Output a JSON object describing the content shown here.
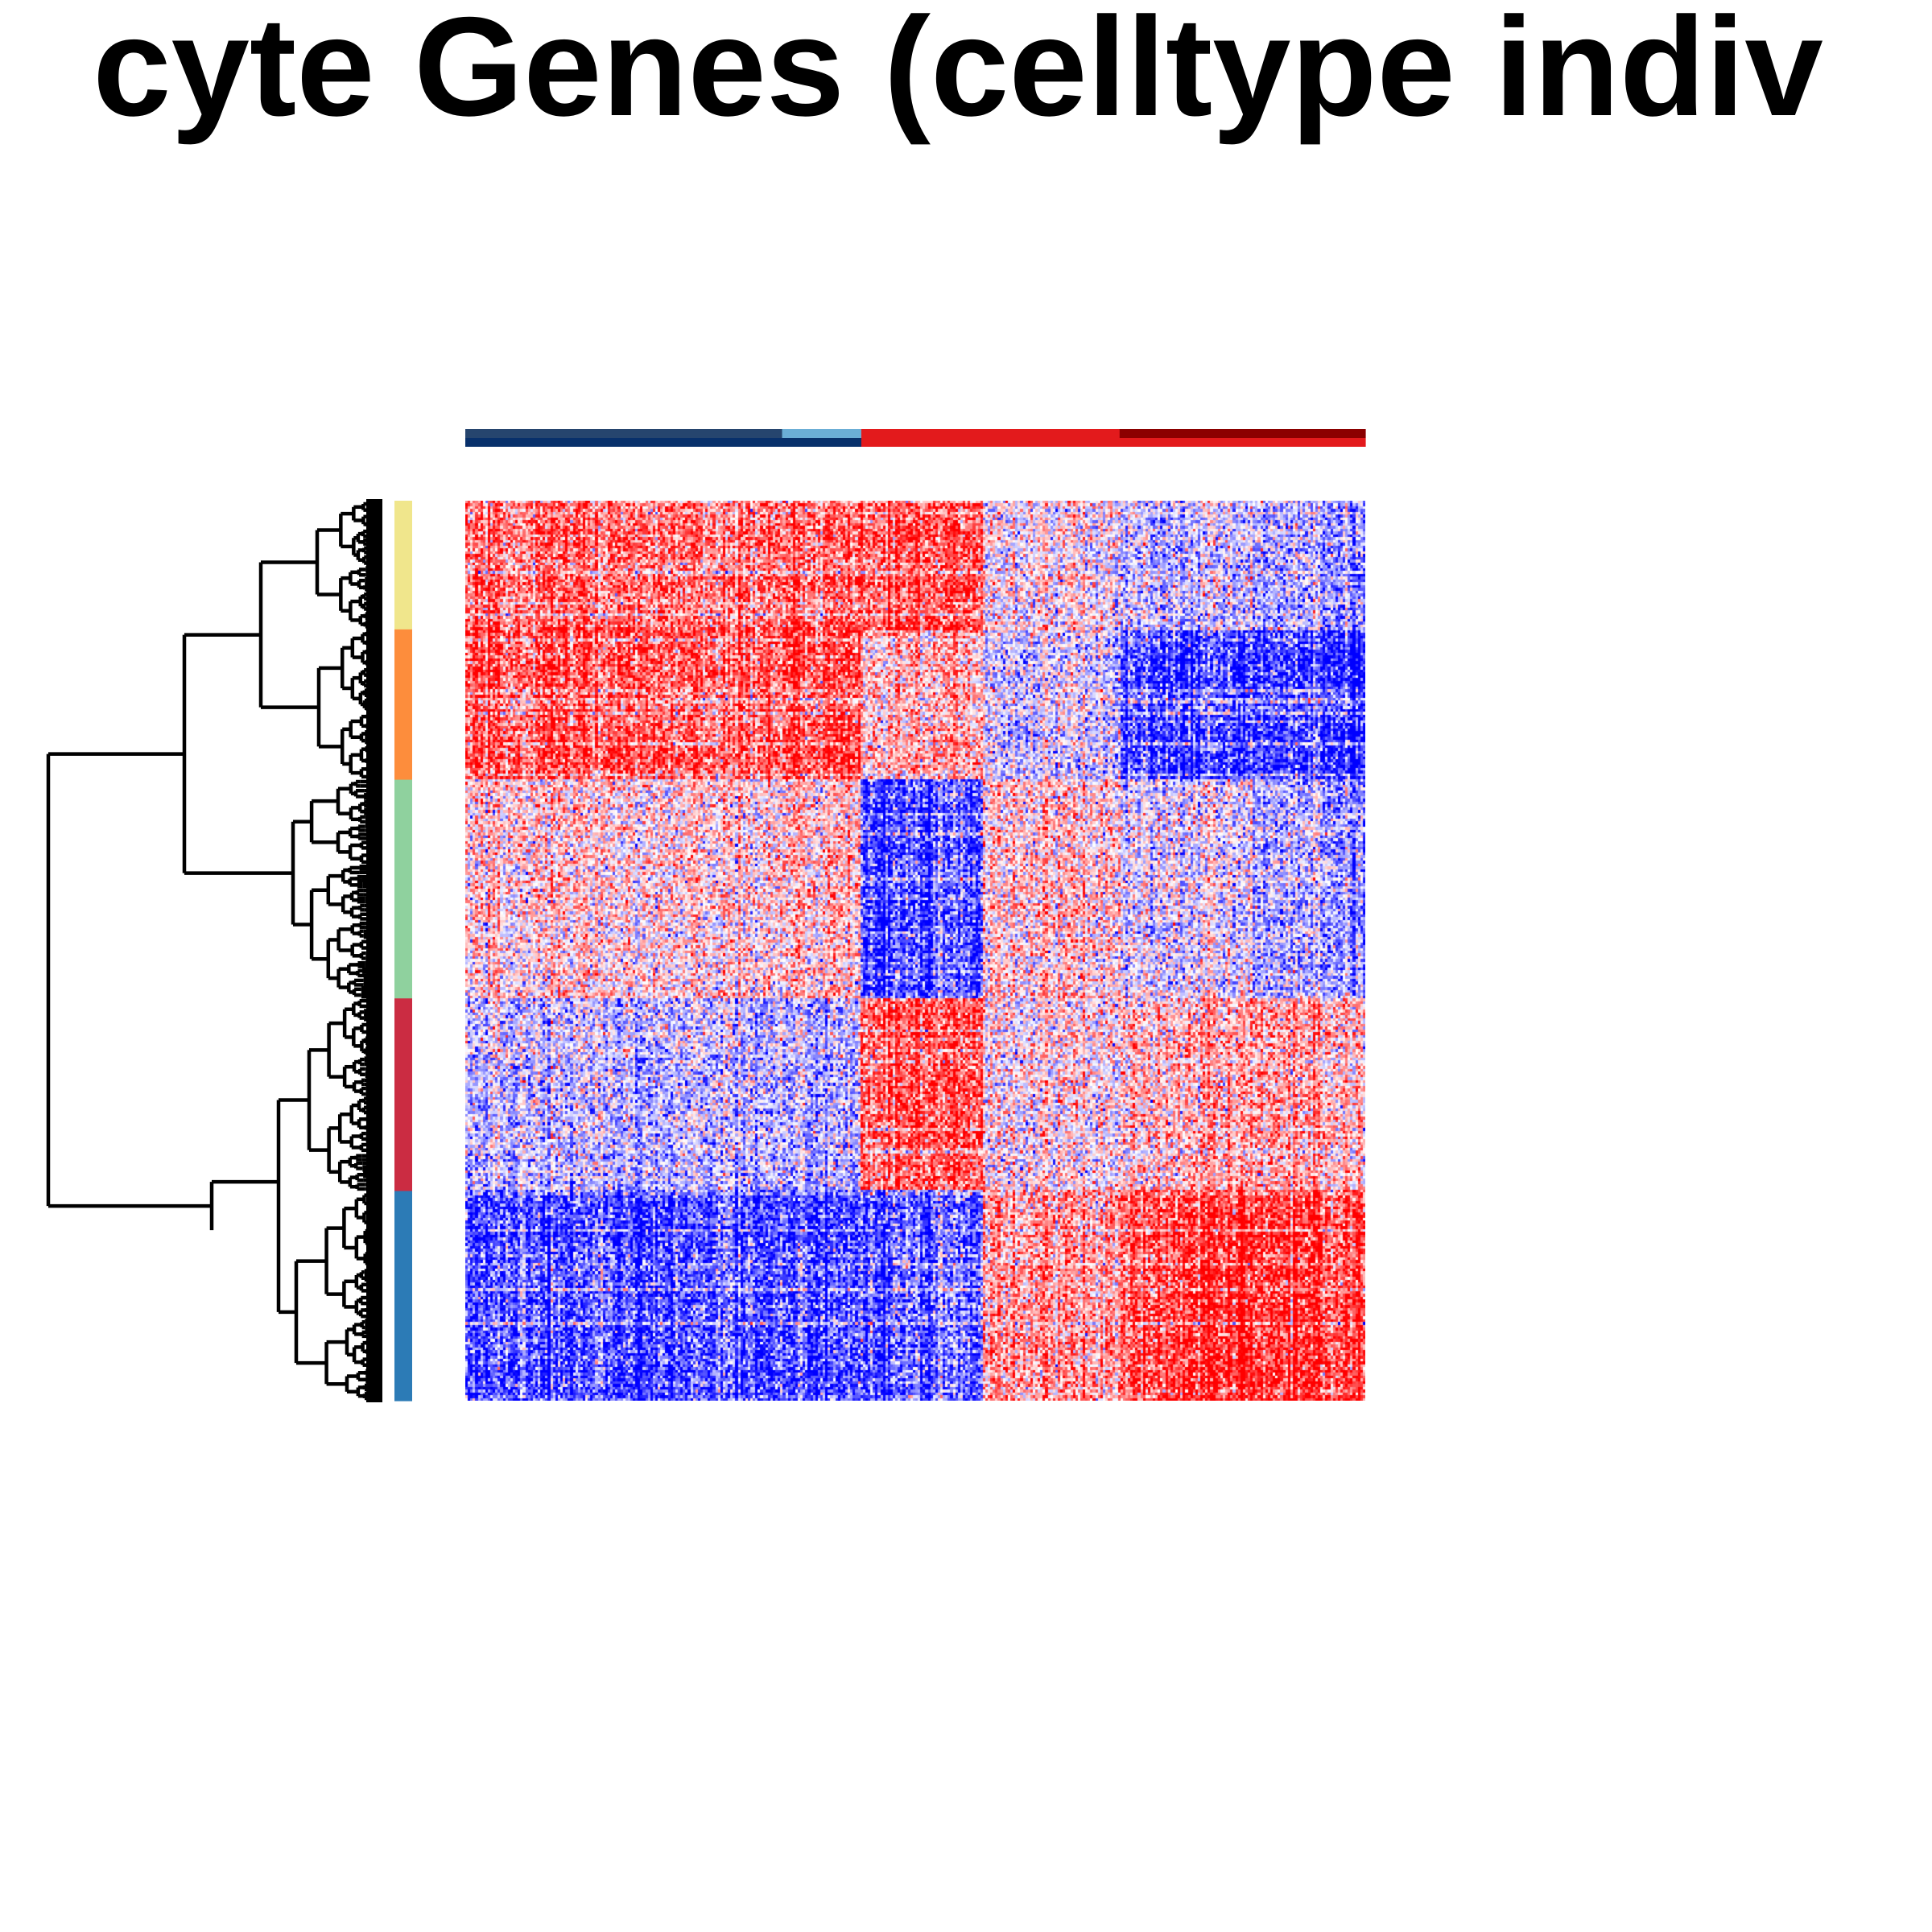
{
  "chart_data": {
    "type": "heatmap",
    "title": "cyte Genes (celltype indiv",
    "color_scale": {
      "low": "#0000ff",
      "mid": "#ffffff",
      "high": "#ff0000"
    },
    "column_groups": [
      {
        "color": "#26456e",
        "columns": 0.352
      },
      {
        "color": "#6baed6",
        "columns": 0.088
      },
      {
        "color": "#e31a1c",
        "columns": 0.287
      },
      {
        "color": "#8b0000",
        "columns": 0.273
      }
    ],
    "column_subgroups": [
      {
        "color": "#08306b",
        "columns": 0.44
      },
      {
        "color": "#e31a1c",
        "columns": 0.56
      }
    ],
    "row_clusters": [
      {
        "color": "#f0e68c",
        "rows": 0.143
      },
      {
        "color": "#fd8d3c",
        "rows": 0.167
      },
      {
        "color": "#8fd19e",
        "rows": 0.243
      },
      {
        "color": "#cb2c42",
        "rows": 0.214
      },
      {
        "color": "#2c7bb6",
        "rows": 0.233
      }
    ],
    "block_pattern": [
      [
        0.6,
        0.65,
        0.75,
        0.05,
        -0.2,
        -0.35
      ],
      [
        0.7,
        0.8,
        0.3,
        -0.15,
        -0.8,
        -0.85
      ],
      [
        0.15,
        0.25,
        -0.75,
        0.2,
        -0.1,
        -0.35
      ],
      [
        -0.25,
        -0.3,
        0.7,
        0.05,
        0.25,
        0.3
      ],
      [
        -0.7,
        -0.75,
        -0.65,
        0.4,
        0.8,
        0.8
      ]
    ],
    "dendrogram": "hierarchical clustering of rows (genes)",
    "legend": "none"
  }
}
